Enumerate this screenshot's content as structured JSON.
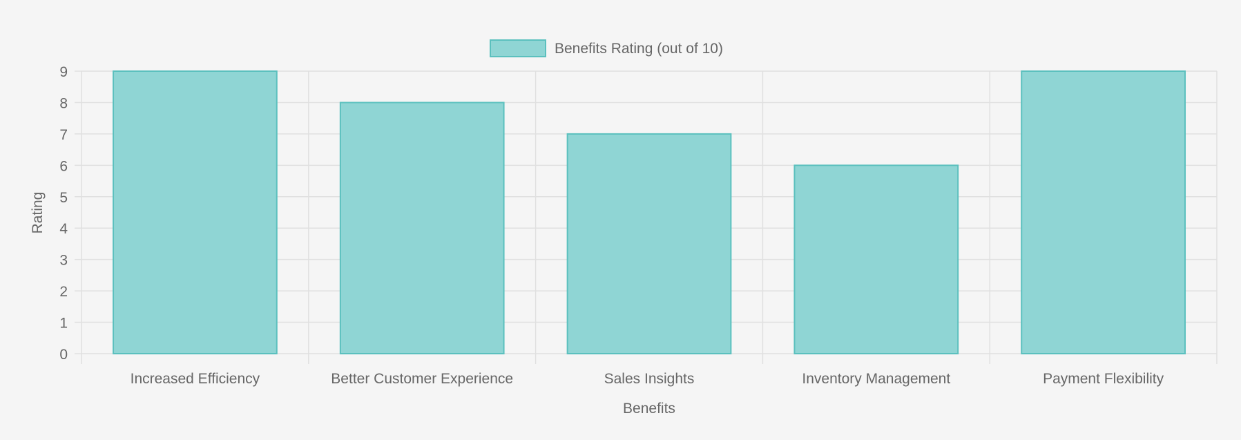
{
  "chart_data": {
    "type": "bar",
    "categories": [
      "Increased Efficiency",
      "Better Customer Experience",
      "Sales Insights",
      "Inventory Management",
      "Payment Flexibility"
    ],
    "series": [
      {
        "name": "Benefits Rating (out of 10)",
        "values": [
          9,
          8,
          7,
          6,
          9
        ]
      }
    ],
    "xlabel": "Benefits",
    "ylabel": "Rating",
    "ylim": [
      0,
      9
    ],
    "yticks": [
      "0",
      "1",
      "2",
      "3",
      "4",
      "5",
      "6",
      "7",
      "8",
      "9"
    ],
    "grid": true,
    "legend_position": "top-center",
    "colors": {
      "bar_fill": "#8fd5d4",
      "bar_border": "#5bc0be",
      "grid": "#e0e0e0",
      "text": "#666666",
      "background": "#f5f5f5"
    }
  }
}
